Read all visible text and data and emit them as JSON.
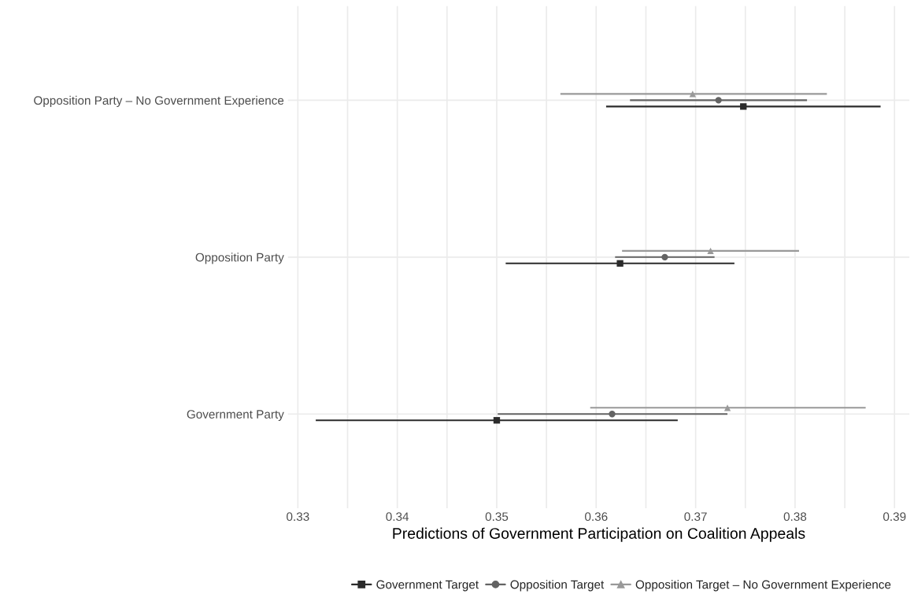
{
  "chart_data": {
    "type": "scatter",
    "orientation": "horizontal",
    "xlabel": "Predictions of Government Participation on Coalition Appeals",
    "categories": [
      "Opposition Party – No Government Experience",
      "Opposition Party",
      "Government Party"
    ],
    "series": [
      {
        "name": "Government Target",
        "color": "#2b2b2b",
        "marker": "square",
        "values": [
          0.3748,
          0.3624,
          0.35
        ],
        "errors": [
          [
            0.361,
            0.3886
          ],
          [
            0.3509,
            0.3739
          ],
          [
            0.3318,
            0.3682
          ]
        ]
      },
      {
        "name": "Opposition Target",
        "color": "#636363",
        "marker": "circle",
        "values": [
          0.3723,
          0.3669,
          0.3616
        ],
        "errors": [
          [
            0.3634,
            0.3812
          ],
          [
            0.3619,
            0.3719
          ],
          [
            0.3501,
            0.3732
          ]
        ]
      },
      {
        "name": "Opposition Target – No Government Experience",
        "color": "#999999",
        "marker": "triangle",
        "values": [
          0.3697,
          0.3715,
          0.3732
        ],
        "errors": [
          [
            0.3564,
            0.3832
          ],
          [
            0.3626,
            0.3804
          ],
          [
            0.3594,
            0.3871
          ]
        ]
      }
    ],
    "xlim": [
      0.329,
      0.3915
    ],
    "xticks": [
      0.33,
      {
        "value": 0.335,
        "label": null
      },
      0.34,
      {
        "value": 0.345,
        "label": null
      },
      0.35,
      {
        "value": 0.355,
        "label": null
      },
      0.36,
      {
        "value": 0.365,
        "label": null
      },
      0.37,
      {
        "value": 0.375,
        "label": null
      },
      0.38,
      {
        "value": 0.385,
        "label": null
      },
      0.39
    ],
    "grid": true,
    "legend": "bottom"
  }
}
